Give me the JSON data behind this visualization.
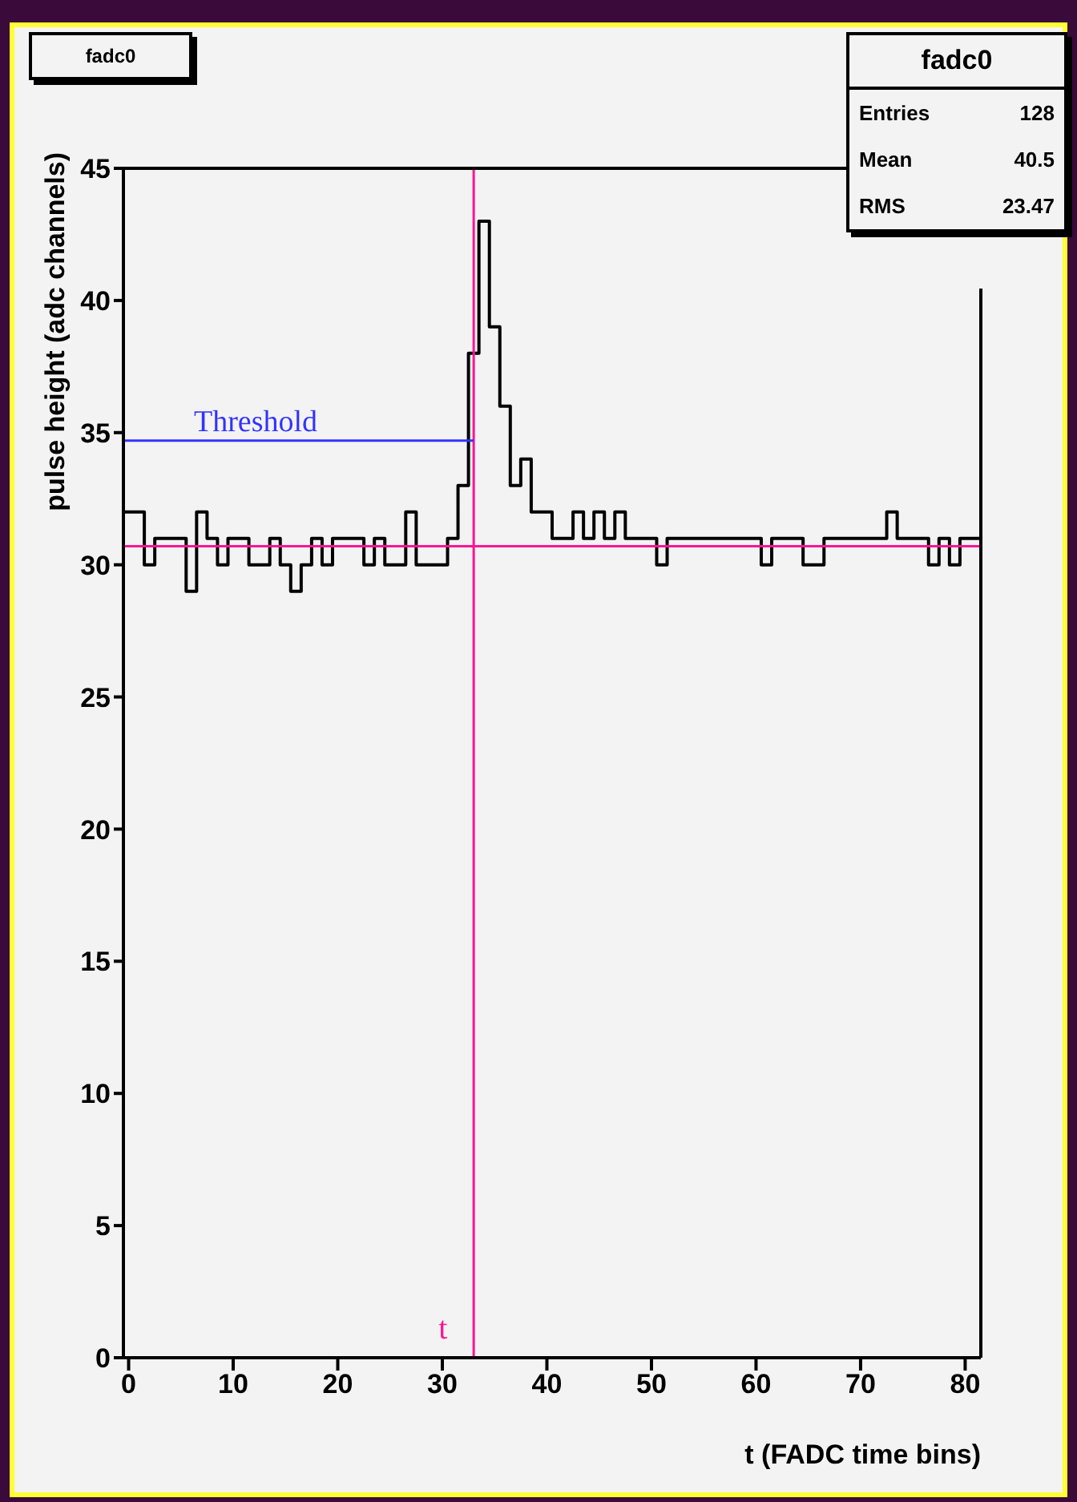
{
  "chart_data": {
    "type": "histogram",
    "title": "fadc0",
    "xlabel": "t (FADC time bins)",
    "ylabel": "pulse height (adc channels)",
    "bins": [
      -0.5,
      0.5,
      1.5,
      2.5,
      3.5,
      4.5,
      5.5,
      6.5,
      7.5,
      8.5,
      9.5,
      10.5,
      11.5,
      12.5,
      13.5,
      14.5,
      15.5,
      16.5,
      17.5,
      18.5,
      19.5,
      20.5,
      21.5,
      22.5,
      23.5,
      24.5,
      25.5,
      26.5,
      27.5,
      28.5,
      29.5,
      30.5,
      31.5,
      32.5,
      33.5,
      34.5,
      35.5,
      36.5,
      37.5,
      38.5,
      39.5,
      40.5,
      41.5,
      42.5,
      43.5,
      44.5,
      45.5,
      46.5,
      47.5,
      48.5,
      49.5,
      50.5,
      51.5,
      52.5,
      53.5,
      54.5,
      55.5,
      56.5,
      57.5,
      58.5,
      59.5,
      60.5,
      61.5,
      62.5,
      63.5,
      64.5,
      65.5,
      66.5,
      67.5,
      68.5,
      69.5,
      70.5,
      71.5,
      72.5,
      73.5,
      74.5,
      75.5,
      76.5,
      77.5,
      78.5,
      79.5,
      80.5,
      81.5
    ],
    "values": [
      32,
      32,
      30,
      31,
      31,
      31,
      29,
      32,
      31,
      30,
      31,
      31,
      30,
      30,
      31,
      30,
      29,
      30,
      31,
      30,
      31,
      31,
      31,
      30,
      31,
      30,
      30,
      32,
      30,
      30,
      30,
      31,
      33,
      38,
      43,
      39,
      36,
      33,
      34,
      32,
      32,
      31,
      31,
      32,
      31,
      32,
      31,
      32,
      31,
      31,
      31,
      30,
      31,
      31,
      31,
      31,
      31,
      31,
      31,
      31,
      31,
      30,
      31,
      31,
      31,
      30,
      30,
      31,
      31,
      31,
      31,
      31,
      31,
      32,
      31,
      31,
      31,
      30,
      31,
      30,
      31,
      31
    ],
    "color": "#000000",
    "xlim": [
      -0.5,
      81.5
    ],
    "xticks": [
      0,
      10,
      20,
      30,
      40,
      50,
      60,
      70,
      80
    ],
    "ylim": [
      0,
      45
    ],
    "yticks": [
      0,
      5,
      10,
      15,
      20,
      25,
      30,
      35,
      40,
      45
    ],
    "ref_lines": [
      {
        "axis": "y",
        "value": 30.7,
        "color": "#ff1493"
      },
      {
        "axis": "x",
        "value": 33,
        "label": "t",
        "color": "#ff1493"
      },
      {
        "axis": "y",
        "value": 34.7,
        "label": "Threshold",
        "color": "#3333ff"
      }
    ],
    "annotations": [
      "fadc0",
      "Entries",
      "128",
      "Mean",
      "40.5",
      "RMS",
      "23.47"
    ]
  }
}
